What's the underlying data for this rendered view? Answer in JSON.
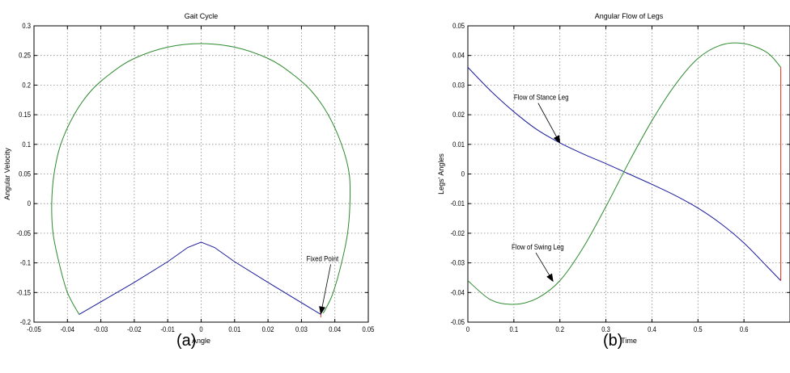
{
  "panels": [
    {
      "label": "(a)"
    },
    {
      "label": "(b)"
    }
  ],
  "colors": {
    "green": "#2e8b2e",
    "blue": "#1a1a9c",
    "red": "#e0301e",
    "grid": "#8a8a8a",
    "axis": "#000000"
  },
  "chart_data": [
    {
      "type": "line",
      "title": "Gait Cycle",
      "xlabel": "Angle",
      "ylabel": "Angular Velocity",
      "xlim": [
        -0.05,
        0.05
      ],
      "ylim": [
        -0.2,
        0.3
      ],
      "xticks": [
        -0.05,
        -0.04,
        -0.03,
        -0.02,
        -0.01,
        0,
        0.01,
        0.02,
        0.03,
        0.04,
        0.05
      ],
      "xticklabels": [
        "-0.05",
        "-0.04",
        "-0.03",
        "-0.02",
        "-0.01",
        "0",
        "0.01",
        "0.02",
        "0.03",
        "0.04",
        "0.05"
      ],
      "yticks": [
        -0.2,
        -0.15,
        -0.1,
        -0.05,
        0,
        0.05,
        0.1,
        0.15,
        0.2,
        0.25,
        0.3
      ],
      "yticklabels": [
        "-0.2",
        "-0.15",
        "-0.1",
        "-0.05",
        "0",
        "0.05",
        "0.1",
        "0.15",
        "0.2",
        "0.25",
        "0.3"
      ],
      "grid": true,
      "series": [
        {
          "color": "green",
          "x": [
            -0.0365,
            -0.04,
            -0.0425,
            -0.0443,
            -0.0447,
            -0.044,
            -0.042,
            -0.038,
            -0.033,
            -0.027,
            -0.02,
            -0.01,
            0,
            0.01,
            0.02,
            0.027,
            0.033,
            0.038,
            0.042,
            0.0443,
            0.0445,
            0.0438,
            0.042,
            0.0395,
            0.0375,
            0.0365
          ],
          "y": [
            -0.187,
            -0.15,
            -0.1,
            -0.05,
            0,
            0.05,
            0.1,
            0.15,
            0.19,
            0.22,
            0.245,
            0.264,
            0.27,
            0.264,
            0.245,
            0.22,
            0.19,
            0.15,
            0.1,
            0.05,
            0,
            -0.05,
            -0.1,
            -0.15,
            -0.175,
            -0.185
          ]
        },
        {
          "color": "blue",
          "x": [
            -0.0365,
            -0.02,
            -0.01,
            -0.004,
            0,
            0.004,
            0.01,
            0.02,
            0.0358
          ],
          "y": [
            -0.187,
            -0.133,
            -0.098,
            -0.074,
            -0.065,
            -0.074,
            -0.098,
            -0.133,
            -0.187
          ]
        },
        {
          "color": "red",
          "x": [
            0.0358,
            0.0358
          ],
          "y": [
            -0.182,
            -0.192
          ]
        }
      ],
      "annotations": [
        {
          "text": "Fixed Point",
          "x": 0.0315,
          "y": -0.097,
          "arrow_to": [
            0.0358,
            -0.186
          ]
        }
      ]
    },
    {
      "type": "line",
      "title": "Angular Flow of Legs",
      "xlabel": "Time",
      "ylabel": "Legs' Angles",
      "xlim": [
        0,
        0.7
      ],
      "ylim": [
        -0.05,
        0.05
      ],
      "xticks": [
        0,
        0.1,
        0.2,
        0.3,
        0.4,
        0.5,
        0.6
      ],
      "xticklabels": [
        "0",
        "0.1",
        "0.2",
        "0.3",
        "0.4",
        "0.5",
        "0.6"
      ],
      "yticks": [
        -0.05,
        -0.04,
        -0.03,
        -0.02,
        -0.01,
        0,
        0.01,
        0.02,
        0.03,
        0.04,
        0.05
      ],
      "yticklabels": [
        "-0.05",
        "-0.04",
        "-0.03",
        "-0.02",
        "-0.01",
        "0",
        "0.01",
        "0.02",
        "0.03",
        "0.04",
        "0.05"
      ],
      "grid": true,
      "series": [
        {
          "color": "blue",
          "x": [
            0,
            0.05,
            0.1,
            0.15,
            0.2,
            0.25,
            0.3,
            0.35,
            0.4,
            0.45,
            0.5,
            0.55,
            0.6,
            0.65,
            0.68
          ],
          "y": [
            0.036,
            0.028,
            0.021,
            0.015,
            0.0105,
            0.0068,
            0.0035,
            0.0,
            -0.0035,
            -0.0072,
            -0.0115,
            -0.0168,
            -0.0233,
            -0.0312,
            -0.036
          ]
        },
        {
          "color": "green",
          "x": [
            0,
            0.05,
            0.1,
            0.15,
            0.2,
            0.25,
            0.3,
            0.35,
            0.4,
            0.45,
            0.5,
            0.55,
            0.6,
            0.65,
            0.68
          ],
          "y": [
            -0.036,
            -0.0425,
            -0.044,
            -0.042,
            -0.036,
            -0.025,
            -0.011,
            0.004,
            0.018,
            0.03,
            0.039,
            0.0435,
            0.044,
            0.041,
            0.036
          ]
        },
        {
          "color": "red",
          "x": [
            0.68,
            0.68
          ],
          "y": [
            0.036,
            -0.036
          ]
        }
      ],
      "annotations": [
        {
          "text": "Flow of Stance Leg",
          "x": 0.1,
          "y": 0.025,
          "arrow_to": [
            0.2,
            0.0105
          ]
        },
        {
          "text": "Flow of Swing Leg",
          "x": 0.095,
          "y": -0.0255,
          "arrow_to": [
            0.185,
            -0.0362
          ]
        }
      ]
    }
  ]
}
